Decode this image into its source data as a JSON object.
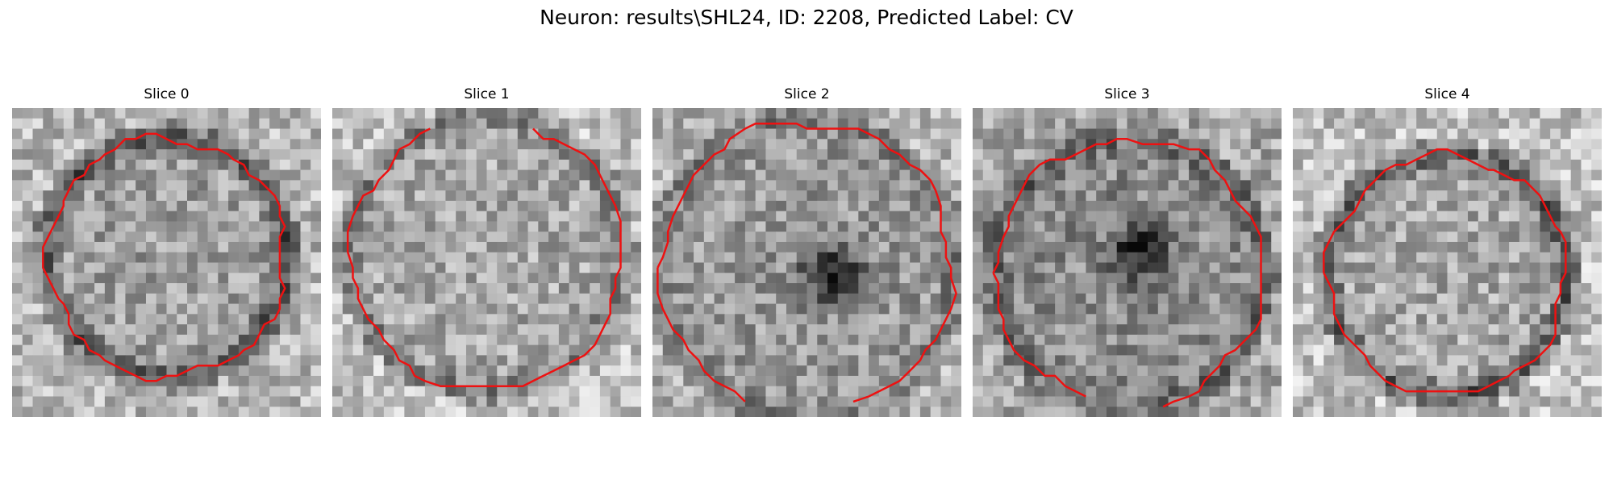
{
  "figure": {
    "title": "Neuron: results\\SHL24, ID: 2208, Predicted Label: CV"
  },
  "colors": {
    "contour": "#ee1111",
    "background": "#ffffff"
  },
  "grid_size": 30,
  "slices": [
    {
      "title": "Slice 0",
      "contour_shape": "closed-circle",
      "dark_blob": false
    },
    {
      "title": "Slice 1",
      "contour_shape": "open-at-top",
      "dark_blob": false
    },
    {
      "title": "Slice 2",
      "contour_shape": "open-at-bottom",
      "dark_blob": true
    },
    {
      "title": "Slice 3",
      "contour_shape": "open-at-bottom",
      "dark_blob": true
    },
    {
      "title": "Slice 4",
      "contour_shape": "closed-circle",
      "dark_blob": false
    }
  ]
}
